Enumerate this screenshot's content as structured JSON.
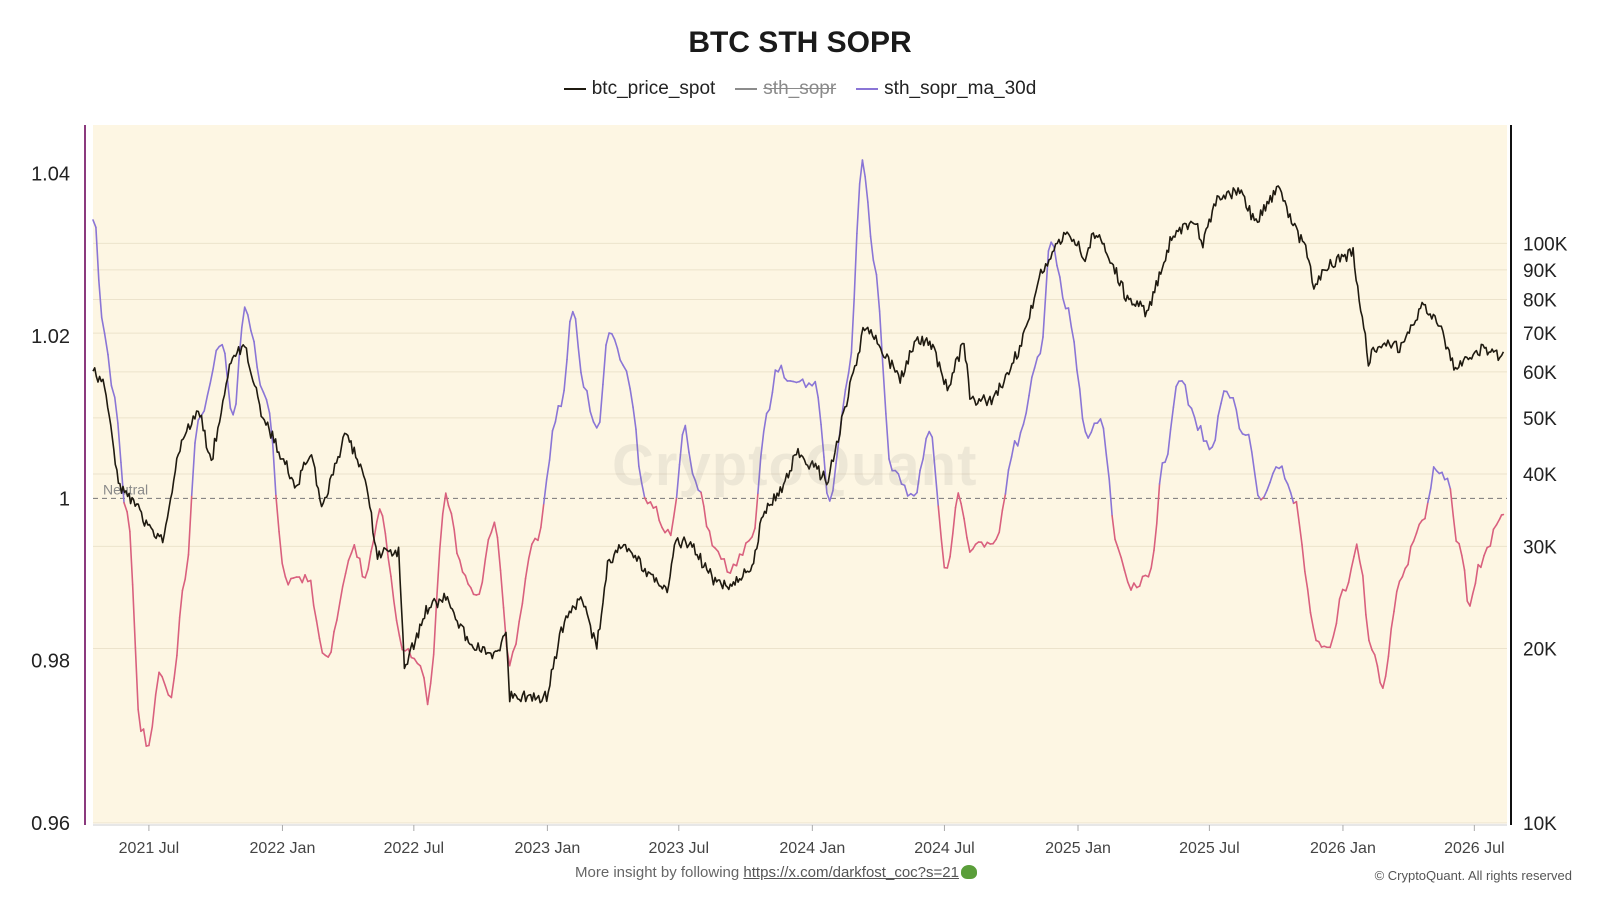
{
  "title": "BTC STH SOPR",
  "legend": [
    {
      "name": "btc_price_spot",
      "color": "#1f1a10",
      "hidden": false
    },
    {
      "name": "sth_sopr",
      "color": "#8c8c8c",
      "hidden": true
    },
    {
      "name": "sth_sopr_ma_30d",
      "color": "#8a75d6",
      "hidden": false
    }
  ],
  "colors": {
    "plot_bg": "#fdf6e3",
    "price": "#1f1a10",
    "ma_above": "#8a75d6",
    "ma_below": "#d9607e",
    "neutral": "#777777",
    "left_axis_line": "#8b3a7e"
  },
  "watermark": "CryptoQuant",
  "footer": {
    "text": "More insight by following",
    "link": "https://x.com/darkfost_coc?s=21",
    "copyright": "© CryptoQuant. All rights reserved"
  },
  "chart_data": {
    "type": "line",
    "title": "BTC STH SOPR",
    "x_range": [
      "2021-04-15",
      "2026-08-15"
    ],
    "x_ticks": [
      {
        "date": "2021-07-01",
        "label": "2021 Jul"
      },
      {
        "date": "2022-01-01",
        "label": "2022 Jan"
      },
      {
        "date": "2022-07-01",
        "label": "2022 Jul"
      },
      {
        "date": "2023-01-01",
        "label": "2023 Jan"
      },
      {
        "date": "2023-07-01",
        "label": "2023 Jul"
      },
      {
        "date": "2024-01-01",
        "label": "2024 Jan"
      },
      {
        "date": "2024-07-01",
        "label": "2024 Jul"
      },
      {
        "date": "2025-01-01",
        "label": "2025 Jan"
      },
      {
        "date": "2025-07-01",
        "label": "2025 Jul"
      },
      {
        "date": "2026-01-01",
        "label": "2026 Jan"
      },
      {
        "date": "2026-07-01",
        "label": "2026 Jul"
      }
    ],
    "y_left": {
      "ylim": [
        0.96,
        1.046
      ],
      "ticks": [
        0.96,
        0.98,
        1,
        1.02,
        1.04
      ],
      "tick_labels": [
        "0.96",
        "0.98",
        "1",
        "1.02",
        "1.04"
      ]
    },
    "y_right": {
      "scale": "log",
      "ylim": [
        10000,
        160000
      ],
      "ticks": [
        10000,
        20000,
        30000,
        40000,
        50000,
        60000,
        70000,
        80000,
        90000,
        100000
      ],
      "tick_labels": [
        "10K",
        "20K",
        "30K",
        "40K",
        "50K",
        "60K",
        "70K",
        "80K",
        "90K",
        "100K"
      ]
    },
    "reference_line": {
      "y": 1,
      "label": "Neutral",
      "axis": "left"
    },
    "series": [
      {
        "name": "btc_price_spot",
        "axis": "right",
        "points": [
          [
            "2021-04-15",
            60000
          ],
          [
            "2021-05-01",
            57000
          ],
          [
            "2021-05-20",
            38000
          ],
          [
            "2021-06-10",
            36000
          ],
          [
            "2021-06-25",
            33000
          ],
          [
            "2021-07-20",
            30500
          ],
          [
            "2021-08-15",
            46000
          ],
          [
            "2021-09-07",
            52000
          ],
          [
            "2021-09-25",
            42000
          ],
          [
            "2021-10-20",
            62000
          ],
          [
            "2021-11-10",
            67000
          ],
          [
            "2021-12-05",
            50000
          ],
          [
            "2022-01-20",
            38000
          ],
          [
            "2022-02-10",
            44000
          ],
          [
            "2022-02-24",
            35000
          ],
          [
            "2022-03-30",
            47000
          ],
          [
            "2022-04-25",
            39000
          ],
          [
            "2022-05-12",
            29000
          ],
          [
            "2022-06-10",
            29500
          ],
          [
            "2022-06-18",
            18500
          ],
          [
            "2022-07-20",
            23500
          ],
          [
            "2022-08-14",
            24500
          ],
          [
            "2022-09-10",
            21000
          ],
          [
            "2022-10-15",
            19300
          ],
          [
            "2022-11-05",
            21000
          ],
          [
            "2022-11-10",
            16500
          ],
          [
            "2022-12-31",
            16500
          ],
          [
            "2023-01-20",
            21500
          ],
          [
            "2023-02-16",
            24500
          ],
          [
            "2023-03-10",
            20000
          ],
          [
            "2023-03-25",
            28000
          ],
          [
            "2023-04-14",
            30500
          ],
          [
            "2023-05-20",
            27000
          ],
          [
            "2023-06-15",
            25000
          ],
          [
            "2023-06-25",
            30500
          ],
          [
            "2023-07-15",
            30500
          ],
          [
            "2023-08-20",
            26000
          ],
          [
            "2023-09-10",
            25800
          ],
          [
            "2023-10-10",
            27500
          ],
          [
            "2023-10-25",
            34500
          ],
          [
            "2023-11-20",
            37500
          ],
          [
            "2023-12-10",
            43500
          ],
          [
            "2024-01-23",
            39000
          ],
          [
            "2024-02-15",
            52000
          ],
          [
            "2024-03-13",
            72000
          ],
          [
            "2024-04-15",
            63000
          ],
          [
            "2024-05-01",
            58000
          ],
          [
            "2024-05-25",
            69000
          ],
          [
            "2024-06-15",
            66000
          ],
          [
            "2024-07-05",
            56000
          ],
          [
            "2024-07-28",
            68000
          ],
          [
            "2024-08-05",
            54000
          ],
          [
            "2024-09-06",
            53500
          ],
          [
            "2024-10-15",
            67000
          ],
          [
            "2024-11-13",
            90000
          ],
          [
            "2024-12-17",
            106000
          ],
          [
            "2025-01-13",
            94000
          ],
          [
            "2025-01-22",
            105000
          ],
          [
            "2025-02-10",
            97000
          ],
          [
            "2025-03-10",
            80000
          ],
          [
            "2025-04-08",
            76000
          ],
          [
            "2025-05-10",
            103000
          ],
          [
            "2025-06-10",
            110000
          ],
          [
            "2025-06-22",
            100000
          ],
          [
            "2025-07-14",
            121000
          ],
          [
            "2025-08-14",
            123000
          ],
          [
            "2025-09-01",
            108000
          ],
          [
            "2025-10-06",
            125000
          ],
          [
            "2025-10-20",
            110000
          ],
          [
            "2025-11-15",
            95000
          ],
          [
            "2025-11-22",
            84000
          ],
          [
            "2025-12-10",
            92000
          ],
          [
            "2026-01-15",
            96000
          ],
          [
            "2026-02-05",
            63000
          ],
          [
            "2026-02-25",
            68000
          ],
          [
            "2026-03-20",
            66000
          ],
          [
            "2026-04-20",
            78000
          ],
          [
            "2026-05-10",
            74000
          ],
          [
            "2026-06-05",
            60000
          ],
          [
            "2026-06-25",
            64000
          ],
          [
            "2026-07-15",
            66000
          ],
          [
            "2026-08-05",
            64000
          ],
          [
            "2026-08-10",
            65000
          ]
        ]
      },
      {
        "name": "sth_sopr_ma_30d",
        "axis": "left",
        "points": [
          [
            "2021-04-15",
            1.035
          ],
          [
            "2021-05-01",
            1.02
          ],
          [
            "2021-05-15",
            1.012
          ],
          [
            "2021-06-01",
            0.998
          ],
          [
            "2021-06-20",
            0.972
          ],
          [
            "2021-07-01",
            0.969
          ],
          [
            "2021-07-15",
            0.978
          ],
          [
            "2021-08-01",
            0.976
          ],
          [
            "2021-08-20",
            0.99
          ],
          [
            "2021-09-07",
            1.01
          ],
          [
            "2021-10-10",
            1.019
          ],
          [
            "2021-10-25",
            1.01
          ],
          [
            "2021-11-10",
            1.023
          ],
          [
            "2021-12-10",
            1.012
          ],
          [
            "2022-01-05",
            0.99
          ],
          [
            "2022-02-05",
            0.99
          ],
          [
            "2022-03-01",
            0.98
          ],
          [
            "2022-04-10",
            0.994
          ],
          [
            "2022-04-25",
            0.99
          ],
          [
            "2022-05-15",
            0.998
          ],
          [
            "2022-06-15",
            0.982
          ],
          [
            "2022-07-10",
            0.98
          ],
          [
            "2022-07-20",
            0.975
          ],
          [
            "2022-08-14",
            1.0
          ],
          [
            "2022-09-10",
            0.99
          ],
          [
            "2022-09-25",
            0.988
          ],
          [
            "2022-10-20",
            0.997
          ],
          [
            "2022-11-10",
            0.98
          ],
          [
            "2022-12-15",
            0.995
          ],
          [
            "2023-01-20",
            1.012
          ],
          [
            "2023-02-05",
            1.023
          ],
          [
            "2023-02-20",
            1.014
          ],
          [
            "2023-03-10",
            1.008
          ],
          [
            "2023-03-27",
            1.021
          ],
          [
            "2023-04-15",
            1.017
          ],
          [
            "2023-04-25",
            1.013
          ],
          [
            "2023-05-15",
            1.0
          ],
          [
            "2023-06-20",
            0.996
          ],
          [
            "2023-07-10",
            1.009
          ],
          [
            "2023-07-20",
            1.003
          ],
          [
            "2023-08-20",
            0.994
          ],
          [
            "2023-09-10",
            0.991
          ],
          [
            "2023-10-10",
            0.995
          ],
          [
            "2023-10-30",
            1.01
          ],
          [
            "2023-11-15",
            1.016
          ],
          [
            "2023-12-10",
            1.014
          ],
          [
            "2024-01-05",
            1.014
          ],
          [
            "2024-01-25",
            1.0
          ],
          [
            "2024-02-20",
            1.015
          ],
          [
            "2024-03-10",
            1.042
          ],
          [
            "2024-03-25",
            1.03
          ],
          [
            "2024-04-20",
            1.003
          ],
          [
            "2024-05-20",
            1.0
          ],
          [
            "2024-06-10",
            1.008
          ],
          [
            "2024-07-05",
            0.991
          ],
          [
            "2024-07-20",
            1.0
          ],
          [
            "2024-08-05",
            0.994
          ],
          [
            "2024-09-06",
            0.994
          ],
          [
            "2024-10-10",
            1.007
          ],
          [
            "2024-11-10",
            1.018
          ],
          [
            "2024-11-25",
            1.032
          ],
          [
            "2024-12-15",
            1.024
          ],
          [
            "2025-01-15",
            1.008
          ],
          [
            "2025-02-01",
            1.01
          ],
          [
            "2025-02-25",
            0.994
          ],
          [
            "2025-03-15",
            0.989
          ],
          [
            "2025-04-08",
            0.99
          ],
          [
            "2025-05-01",
            1.005
          ],
          [
            "2025-05-20",
            1.015
          ],
          [
            "2025-06-15",
            1.009
          ],
          [
            "2025-07-01",
            1.006
          ],
          [
            "2025-07-25",
            1.013
          ],
          [
            "2025-08-20",
            1.008
          ],
          [
            "2025-09-10",
            1.0
          ],
          [
            "2025-10-05",
            1.004
          ],
          [
            "2025-10-25",
            1.0
          ],
          [
            "2025-11-25",
            0.983
          ],
          [
            "2025-12-10",
            0.981
          ],
          [
            "2026-01-05",
            0.989
          ],
          [
            "2026-01-20",
            0.994
          ],
          [
            "2026-02-10",
            0.982
          ],
          [
            "2026-02-25",
            0.977
          ],
          [
            "2026-03-20",
            0.99
          ],
          [
            "2026-04-20",
            0.997
          ],
          [
            "2026-05-10",
            1.004
          ],
          [
            "2026-05-25",
            1.002
          ],
          [
            "2026-06-10",
            0.994
          ],
          [
            "2026-06-25",
            0.987
          ],
          [
            "2026-07-10",
            0.992
          ],
          [
            "2026-08-05",
            0.997
          ],
          [
            "2026-08-10",
            0.998
          ]
        ]
      }
    ]
  }
}
